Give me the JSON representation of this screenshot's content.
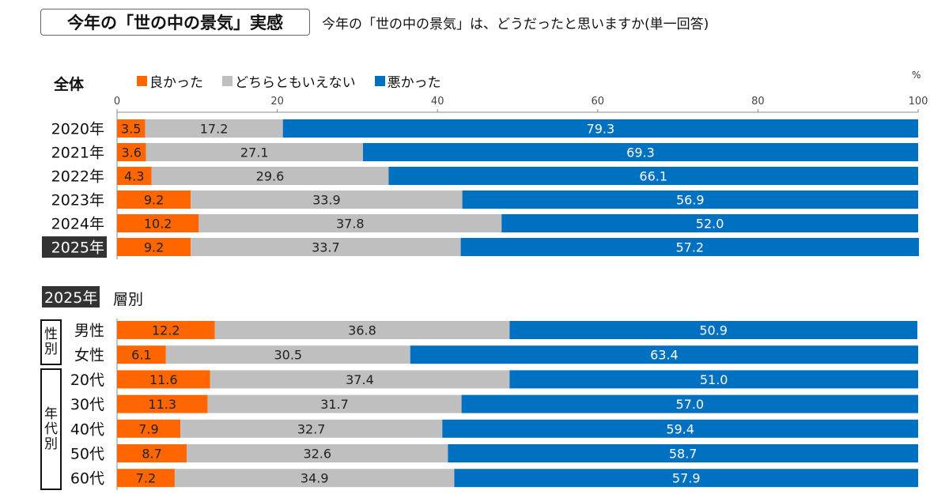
{
  "header": {
    "title": "今年の「世の中の景気」実感",
    "question": "今年の「世の中の景気」は、どうだったと思いますか(単一回答)"
  },
  "colors": {
    "good": "#FF6600",
    "neutral": "#BFBFBF",
    "bad": "#0070C0"
  },
  "chart_data": [
    {
      "type": "bar",
      "orientation": "horizontal-stacked-100",
      "title": "全体",
      "unit": "%",
      "xlim": [
        0,
        100
      ],
      "xticks": [
        0,
        20,
        40,
        60,
        80,
        100
      ],
      "legend": [
        "良かった",
        "どちらともいえない",
        "悪かった"
      ],
      "legend_position": "top",
      "categories": [
        "2020年",
        "2021年",
        "2022年",
        "2023年",
        "2024年",
        "2025年"
      ],
      "highlight_category": "2025年",
      "series": [
        {
          "name": "良かった",
          "values": [
            3.5,
            3.6,
            4.3,
            9.2,
            10.2,
            9.2
          ]
        },
        {
          "name": "どちらともいえない",
          "values": [
            17.2,
            27.1,
            29.6,
            33.9,
            37.8,
            33.7
          ]
        },
        {
          "name": "悪かった",
          "values": [
            79.3,
            69.3,
            66.1,
            56.9,
            52.0,
            57.2
          ]
        }
      ]
    },
    {
      "type": "bar",
      "orientation": "horizontal-stacked-100",
      "title": "2025年 層別",
      "year_tag": "2025年",
      "subtitle": "層別",
      "xlim": [
        0,
        100
      ],
      "groups": [
        {
          "label": "性別",
          "categories": [
            "男性",
            "女性"
          ]
        },
        {
          "label": "年代別",
          "categories": [
            "20代",
            "30代",
            "40代",
            "50代",
            "60代"
          ]
        }
      ],
      "categories": [
        "男性",
        "女性",
        "20代",
        "30代",
        "40代",
        "50代",
        "60代"
      ],
      "series": [
        {
          "name": "良かった",
          "values": [
            12.2,
            6.1,
            11.6,
            11.3,
            7.9,
            8.7,
            7.2
          ]
        },
        {
          "name": "どちらともいえない",
          "values": [
            36.8,
            30.5,
            37.4,
            31.7,
            32.7,
            32.6,
            34.9
          ]
        },
        {
          "name": "悪かった",
          "values": [
            50.9,
            63.4,
            51.0,
            57.0,
            59.4,
            58.7,
            57.9
          ]
        }
      ]
    }
  ]
}
